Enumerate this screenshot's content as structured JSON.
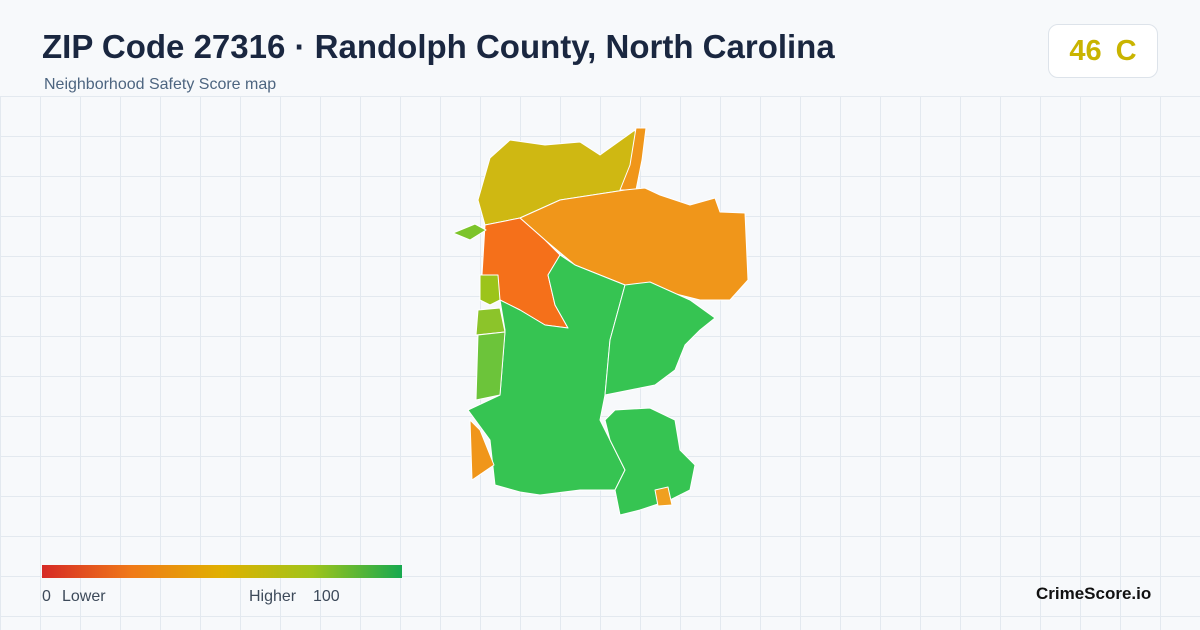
{
  "header": {
    "title": "ZIP Code 27316 · Randolph County, North Carolina",
    "subtitle": "Neighborhood Safety Score map",
    "score": "46",
    "grade": "C"
  },
  "legend": {
    "min": "0",
    "min_label": "Lower",
    "max_label": "Higher",
    "max": "100"
  },
  "footer": {
    "brand": "CrimeScore.io"
  }
}
